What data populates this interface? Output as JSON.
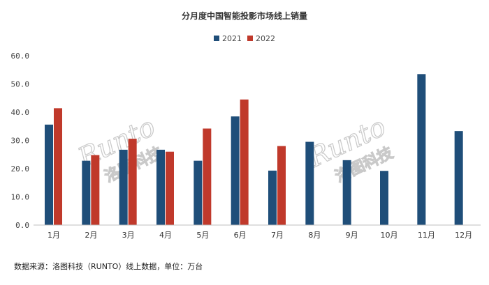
{
  "chart_data": {
    "type": "bar",
    "title": "分月度中国智能投影市场线上销量",
    "categories": [
      "1月",
      "2月",
      "3月",
      "4月",
      "5月",
      "6月",
      "7月",
      "8月",
      "9月",
      "10月",
      "11月",
      "12月"
    ],
    "series": [
      {
        "name": "2021",
        "color": "#1f4e79",
        "values": [
          35.6,
          22.8,
          26.7,
          26.7,
          22.8,
          38.5,
          19.3,
          29.5,
          23.0,
          19.2,
          53.5,
          33.3
        ]
      },
      {
        "name": "2022",
        "color": "#c0392b",
        "values": [
          41.4,
          24.8,
          30.6,
          26.0,
          34.2,
          44.5,
          28.0,
          null,
          null,
          null,
          null,
          null
        ]
      }
    ],
    "y_ticks": [
      "0.0",
      "10.0",
      "20.0",
      "30.0",
      "40.0",
      "50.0",
      "60.0"
    ],
    "ylim": [
      0,
      60
    ],
    "grid": false,
    "legend_position": "top-center",
    "source": "数据来源：洛图科技（RUNTO）线上数据，单位：万台",
    "watermark": {
      "brand": "Runto",
      "name": "洛图科技"
    }
  }
}
